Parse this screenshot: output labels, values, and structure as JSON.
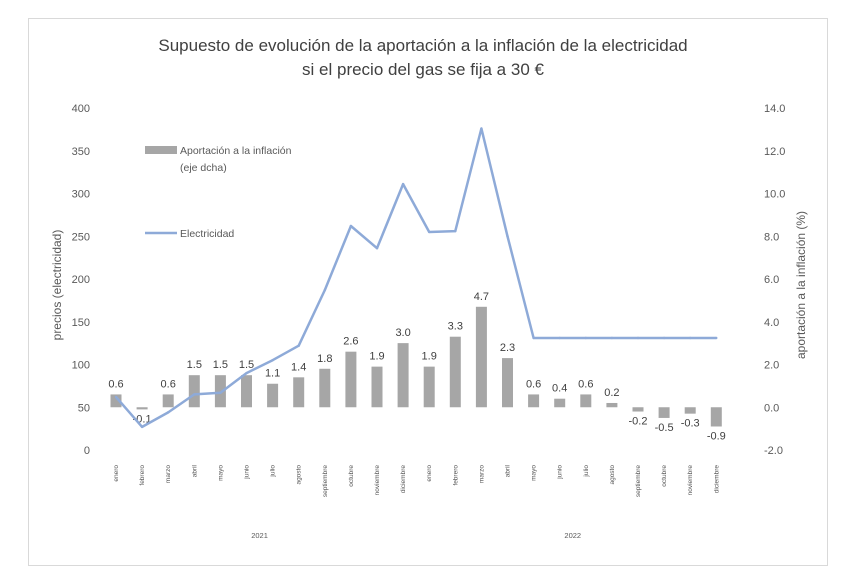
{
  "chart_data": {
    "type": "bar+line",
    "title_line1": "Supuesto de evolución de la aportación a  la inflación de la electricidad",
    "title_line2": "si el precio del gas se fija a 30 €",
    "ylabel_left": "precios (electricidad)",
    "ylabel_right": "aportación a la inflación (%)",
    "ylim_left": [
      0,
      400
    ],
    "ylim_right": [
      -2.0,
      14.0
    ],
    "left_ticks": [
      "0",
      "50",
      "100",
      "150",
      "200",
      "250",
      "300",
      "350",
      "400"
    ],
    "right_ticks": [
      "-2.0",
      "0.0",
      "2.0",
      "4.0",
      "6.0",
      "8.0",
      "10.0",
      "12.0",
      "14.0"
    ],
    "categories": [
      "enero",
      "febrero",
      "marzo",
      "abril",
      "mayo",
      "junio",
      "julio",
      "agosto",
      "septiembre",
      "octubre",
      "noviembre",
      "diciembre",
      "enero",
      "febrero",
      "marzo",
      "abril",
      "mayo",
      "junio",
      "julio",
      "agosto",
      "septiembre",
      "octubre",
      "noviembre",
      "diciembre"
    ],
    "years": [
      {
        "label": "2021",
        "start": 0,
        "end": 11
      },
      {
        "label": "2022",
        "start": 12,
        "end": 23
      }
    ],
    "series": [
      {
        "name": "Aportación a la inflación (eje dcha)",
        "axis": "right",
        "type": "bar",
        "color": "#a6a6a6",
        "values": [
          0.6,
          -0.1,
          0.6,
          1.5,
          1.5,
          1.5,
          1.1,
          1.4,
          1.8,
          2.6,
          1.9,
          3.0,
          1.9,
          3.3,
          4.7,
          2.3,
          0.6,
          0.4,
          0.6,
          0.2,
          -0.2,
          -0.5,
          -0.3,
          -0.9
        ],
        "labels": [
          "0.6",
          "-0.1",
          "0.6",
          "1.5",
          "1.5",
          "1.5",
          "1.1",
          "1.4",
          "1.8",
          "2.6",
          "1.9",
          "3.0",
          "1.9",
          "3.3",
          "4.7",
          "2.3",
          "0.6",
          "0.4",
          "0.6",
          "0.2",
          "-0.2",
          "-0.5",
          "-0.3",
          "-0.9"
        ]
      },
      {
        "name": "Electricidad",
        "axis": "left",
        "type": "line",
        "color": "#8eaad8",
        "values": [
          62,
          27,
          44,
          65,
          67,
          90,
          105,
          122,
          187,
          262,
          236,
          311,
          255,
          256,
          376,
          250,
          131,
          131,
          131,
          131,
          131,
          131,
          131,
          131
        ]
      }
    ],
    "legend": [
      {
        "label_line1": "Aportación a la inflación",
        "label_line2": "(eje dcha)",
        "kind": "bar"
      },
      {
        "label_line1": "Electricidad",
        "label_line2": "",
        "kind": "line"
      }
    ]
  }
}
